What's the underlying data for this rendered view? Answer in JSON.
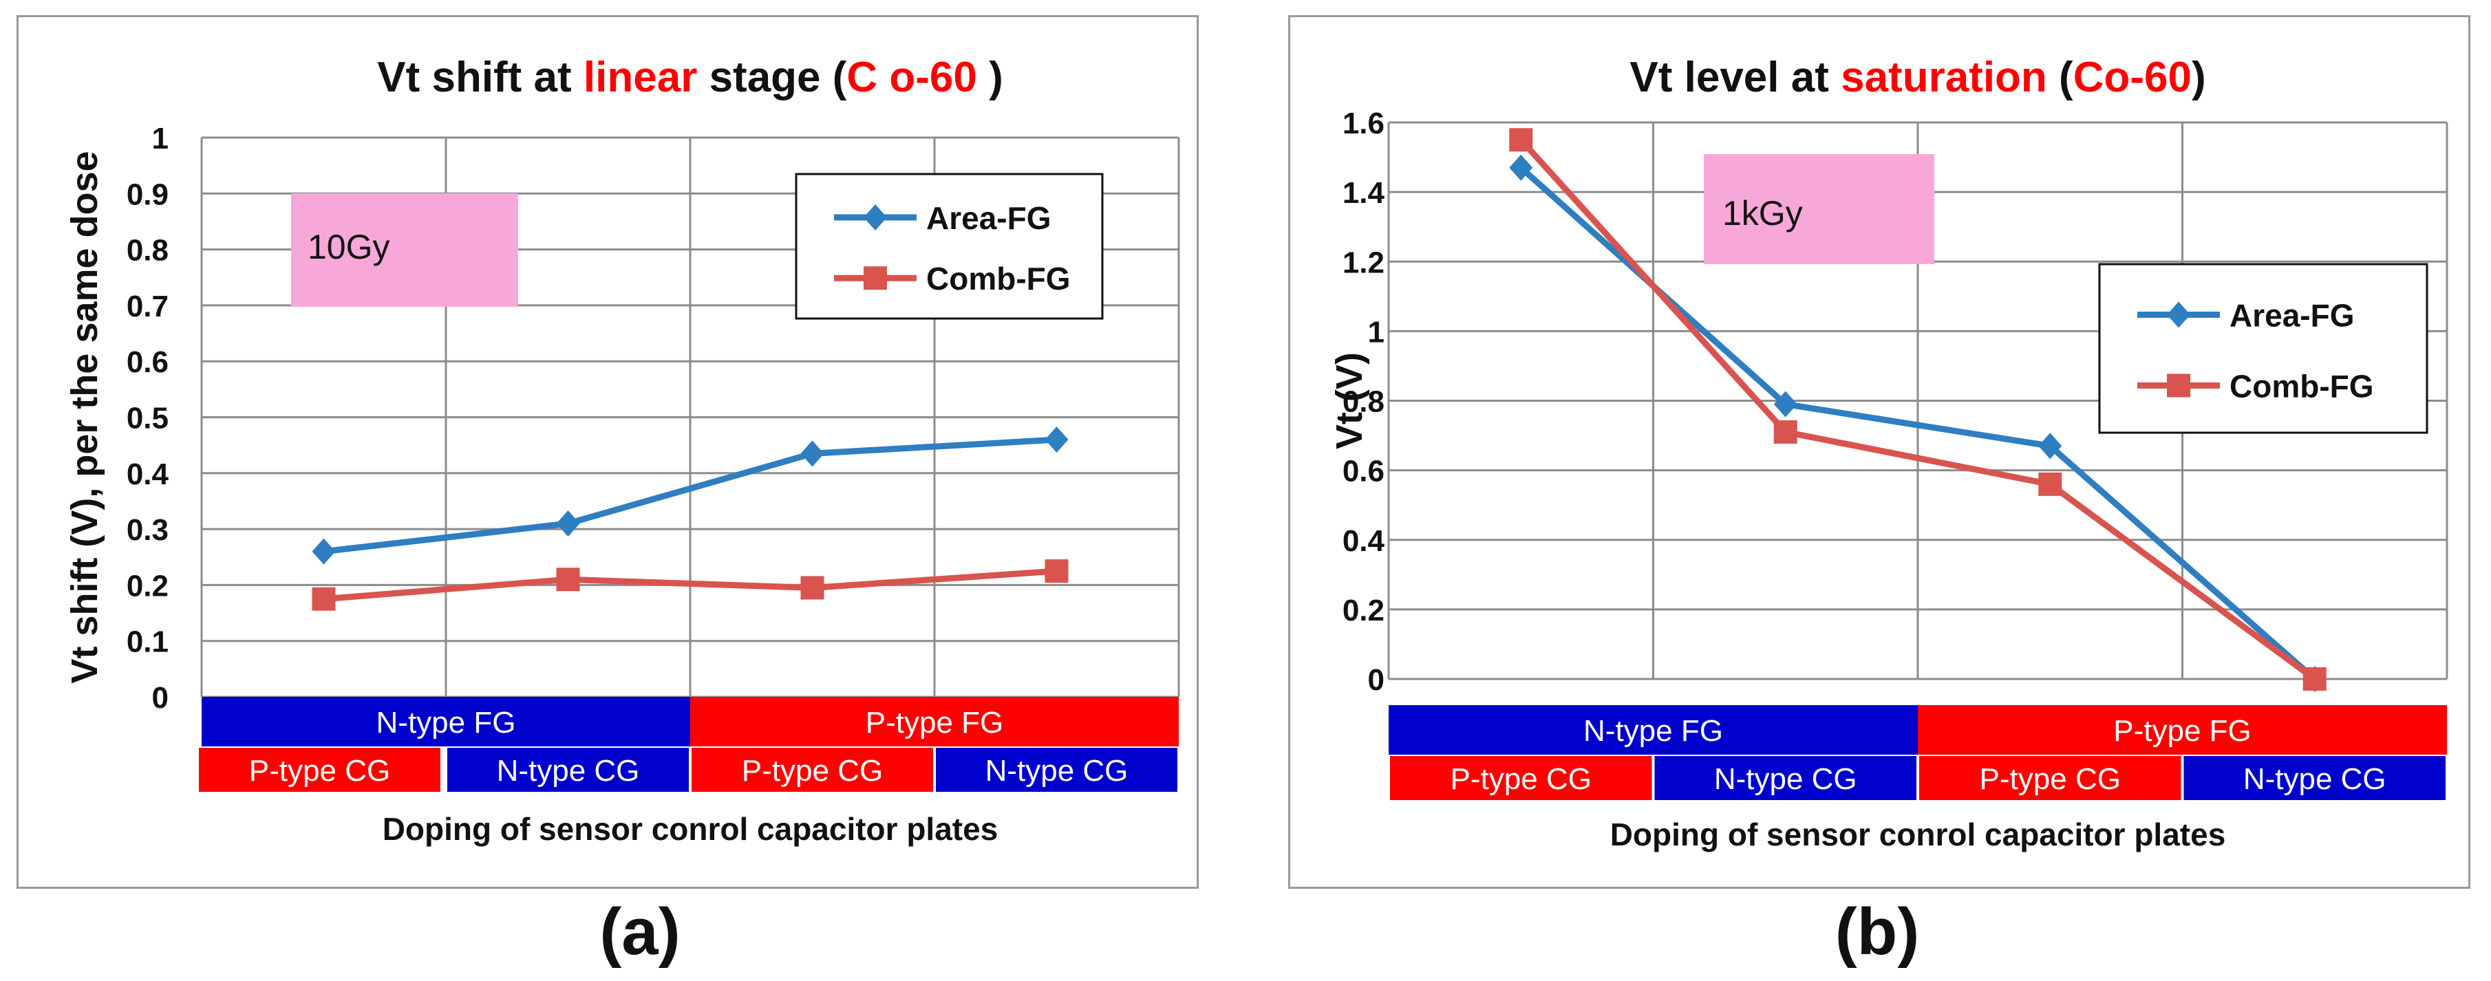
{
  "colors": {
    "area_fg": "#2E7EC1",
    "comb_fg": "#D9534F",
    "title_highlight": "#FF0000",
    "n_type": "#0000CC",
    "p_type": "#FF0000",
    "dose_box": "#F7A8D8",
    "grid": "#8C8C8C"
  },
  "icons": {
    "area_marker": "diamond-icon",
    "comb_marker": "square-icon"
  },
  "captions": [
    "(a)",
    "(b)"
  ],
  "chart_data": [
    {
      "type": "line",
      "title_parts": [
        "Vt shift at ",
        "linear",
        " stage (",
        "C o-60",
        " )"
      ],
      "title_red_parts": [
        1,
        3
      ],
      "ylabel": "Vt shift (V), per the same dose",
      "xlabel": "Doping of sensor conrol capacitor plates",
      "ylim": [
        0,
        1
      ],
      "yticks": [
        "0",
        "0.1",
        "0.2",
        "0.3",
        "0.4",
        "0.5",
        "0.6",
        "0.7",
        "0.8",
        "0.9",
        "1"
      ],
      "grid": true,
      "legend_position": "top-right",
      "dose_label": "10Gy",
      "fg_groups": [
        "N-type FG",
        "P-type FG"
      ],
      "cg_labels": [
        "P-type CG",
        "N-type CG",
        "P-type CG",
        "N-type CG"
      ],
      "series": [
        {
          "name": "Area-FG",
          "values": [
            0.26,
            0.31,
            0.435,
            0.46
          ]
        },
        {
          "name": "Comb-FG",
          "values": [
            0.175,
            0.21,
            0.195,
            0.225
          ]
        }
      ]
    },
    {
      "type": "line",
      "title_parts": [
        "Vt level at ",
        "saturation",
        " (",
        "Co-60",
        ")"
      ],
      "title_red_parts": [
        1,
        3
      ],
      "ylabel": "Vt (V)",
      "xlabel": "Doping of sensor conrol capacitor plates",
      "ylim": [
        0,
        1.6
      ],
      "yticks": [
        "0",
        "0.2",
        "0.4",
        "0.6",
        "0.8",
        "1",
        "1.2",
        "1.4",
        "1.6"
      ],
      "grid": true,
      "legend_position": "right",
      "dose_label": "1kGy",
      "fg_groups": [
        "N-type FG",
        "P-type FG"
      ],
      "cg_labels": [
        "P-type CG",
        "N-type CG",
        "P-type CG",
        "N-type CG"
      ],
      "series": [
        {
          "name": "Area-FG",
          "values": [
            1.47,
            0.79,
            0.67,
            0
          ]
        },
        {
          "name": "Comb-FG",
          "values": [
            1.55,
            0.71,
            0.56,
            0
          ]
        }
      ]
    }
  ]
}
